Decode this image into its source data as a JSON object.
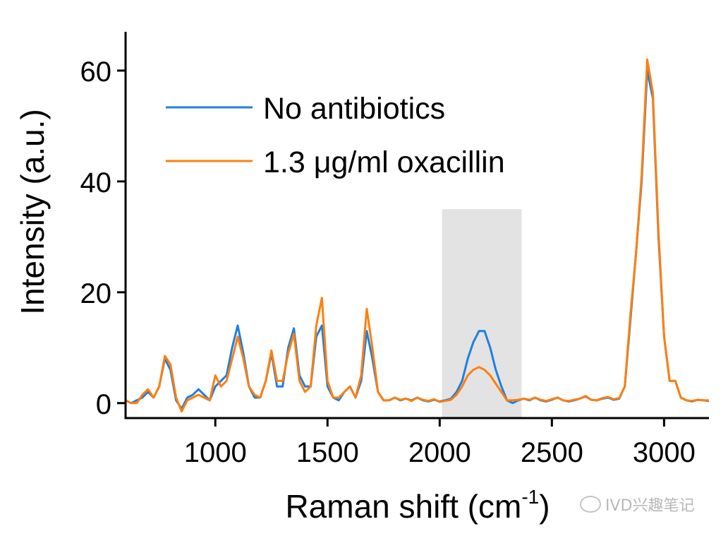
{
  "chart_data": {
    "type": "line",
    "title": "",
    "xlabel": "Raman shift (cm",
    "xlabel_sup": "-1",
    "xlabel_end": ")",
    "ylabel": "Intensity (a.u.)",
    "xlim": [
      600,
      3200
    ],
    "ylim": [
      -2.7,
      67
    ],
    "xticks": [
      1000,
      1500,
      2000,
      2500,
      3000
    ],
    "xtick_labels": [
      "1000",
      "1500",
      "2000",
      "2500",
      "3000"
    ],
    "yticks": [
      0,
      20,
      40,
      60
    ],
    "ytick_labels": [
      "0",
      "20",
      "40",
      "60"
    ],
    "grid": false,
    "legend_position": "top-left",
    "shaded_region": {
      "x": [
        2010,
        2365
      ],
      "color": "#e3e3e3"
    },
    "x": [
      600,
      625,
      650,
      675,
      700,
      725,
      750,
      775,
      800,
      825,
      850,
      875,
      900,
      925,
      950,
      975,
      1000,
      1025,
      1050,
      1075,
      1100,
      1125,
      1150,
      1175,
      1200,
      1225,
      1250,
      1275,
      1300,
      1325,
      1350,
      1375,
      1400,
      1425,
      1450,
      1475,
      1500,
      1525,
      1550,
      1575,
      1600,
      1625,
      1650,
      1675,
      1700,
      1725,
      1750,
      1775,
      1800,
      1825,
      1850,
      1875,
      1900,
      1925,
      1950,
      1975,
      2000,
      2025,
      2050,
      2075,
      2100,
      2125,
      2150,
      2175,
      2200,
      2225,
      2250,
      2275,
      2300,
      2325,
      2350,
      2375,
      2400,
      2425,
      2450,
      2475,
      2500,
      2525,
      2550,
      2575,
      2600,
      2625,
      2650,
      2675,
      2700,
      2725,
      2750,
      2775,
      2800,
      2825,
      2850,
      2875,
      2900,
      2925,
      2950,
      2975,
      3000,
      3025,
      3050,
      3075,
      3100,
      3125,
      3150,
      3175,
      3200
    ],
    "series": [
      {
        "name": "No antibiotics",
        "color": "#1f7fe0",
        "values": [
          0.5,
          0,
          0.5,
          1,
          2,
          1,
          3,
          8,
          6,
          0.5,
          -1,
          1,
          1.5,
          2.5,
          1.5,
          0.5,
          3,
          4,
          5,
          10,
          14,
          9,
          3,
          1,
          1,
          4,
          9,
          3,
          3,
          10,
          13.5,
          5,
          3,
          3,
          12,
          14,
          3,
          1,
          0.5,
          2,
          3,
          1,
          4,
          13,
          8,
          2,
          0.5,
          0.5,
          1,
          0.5,
          0.8,
          0.5,
          1,
          0.5,
          0.3,
          0.6,
          0.3,
          0.5,
          0.8,
          2,
          4,
          8,
          11,
          13,
          13,
          10,
          6,
          3,
          0.5,
          0,
          0.5,
          0.8,
          0.5,
          1,
          0.5,
          0.3,
          0.6,
          1,
          0.5,
          0.3,
          0.5,
          0.8,
          1.2,
          0.6,
          0.5,
          0.8,
          1,
          0.6,
          0.8,
          3,
          15,
          27,
          40,
          60,
          55,
          30,
          12,
          4,
          4,
          1,
          0.5,
          0.3,
          0.6,
          0.5,
          0.4
        ]
      },
      {
        "name": "1.3 μg/ml oxacillin",
        "color": "#ff7f0e",
        "values": [
          0.5,
          0,
          0,
          1.5,
          2.5,
          1,
          3,
          8.5,
          7,
          1,
          -1.5,
          0.5,
          1,
          1.5,
          1,
          0.5,
          5,
          3,
          4,
          8,
          12,
          8,
          3,
          1.5,
          1,
          4,
          9.5,
          4,
          4,
          9,
          12.5,
          4,
          2,
          3,
          14,
          19,
          4,
          1,
          1,
          2,
          3,
          1,
          5,
          17,
          10,
          2,
          0.5,
          0.5,
          1,
          0.6,
          0.8,
          0.4,
          1,
          0.6,
          0.4,
          0.7,
          0.2,
          0.4,
          0.6,
          1.5,
          3,
          5,
          6,
          6.5,
          6,
          5,
          3.5,
          2,
          0.5,
          0.5,
          0.6,
          0.8,
          0.6,
          1,
          0.6,
          0.4,
          0.7,
          1,
          0.5,
          0.4,
          0.6,
          0.8,
          1.3,
          0.6,
          0.5,
          0.9,
          1.1,
          0.7,
          0.9,
          3,
          16,
          27,
          41,
          62,
          56,
          31,
          12,
          4,
          4,
          1,
          0.5,
          0.4,
          0.6,
          0.5,
          0.5
        ]
      }
    ]
  },
  "legend": {
    "items": [
      "No antibiotics",
      "1.3 μg/ml oxacillin"
    ]
  },
  "watermark": "IVD兴趣笔记"
}
